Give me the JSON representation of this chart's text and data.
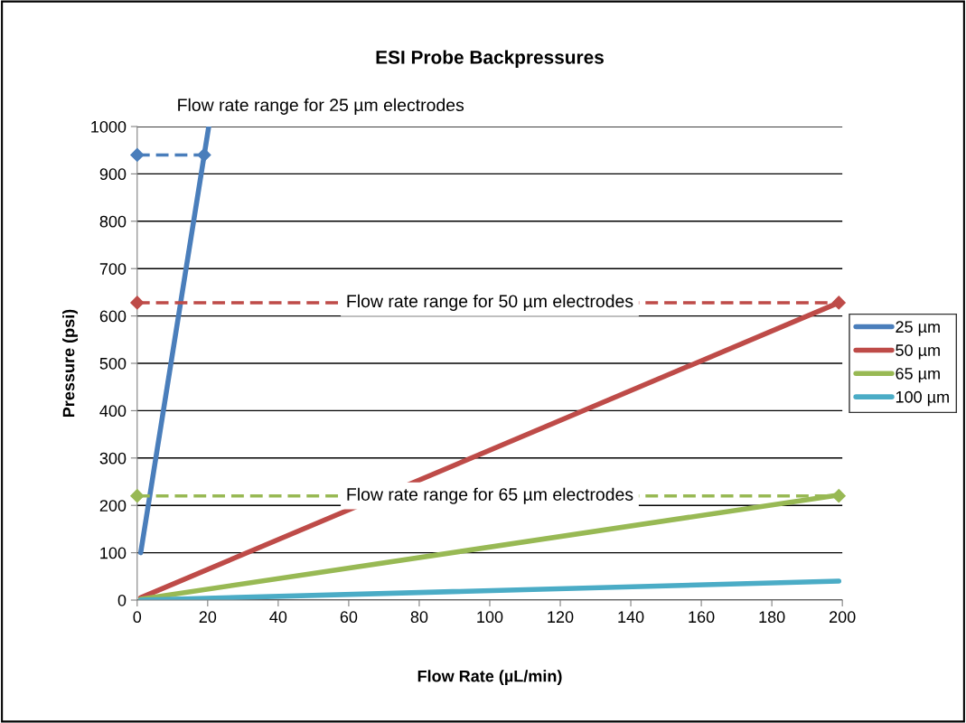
{
  "chart_data": {
    "type": "line",
    "title": "ESI Probe Backpressures",
    "xlabel": "Flow Rate (µL/min)",
    "ylabel": "Pressure (psi)",
    "xlim": [
      0,
      200
    ],
    "xticks": [
      0,
      20,
      40,
      60,
      80,
      100,
      120,
      140,
      160,
      180,
      200
    ],
    "ylim": [
      0,
      1000
    ],
    "yticks": [
      0,
      100,
      200,
      300,
      400,
      500,
      600,
      700,
      800,
      900,
      1000
    ],
    "grid": "y",
    "legend": "right",
    "line_style": "solid",
    "series": [
      {
        "name": "25 µm",
        "color": "#4a7ebb",
        "x": [
          1,
          20.3
        ],
        "values": [
          100,
          1000
        ]
      },
      {
        "name": "50 µm",
        "color": "#be4b48",
        "x": [
          1,
          199
        ],
        "values": [
          5,
          628
        ]
      },
      {
        "name": "65 µm",
        "color": "#98b954",
        "x": [
          1,
          199
        ],
        "values": [
          2,
          222
        ]
      },
      {
        "name": "100 µm",
        "color": "#4bacc6",
        "x": [
          1,
          199
        ],
        "values": [
          0,
          40
        ]
      },
      {
        "color": "#4a7ebb",
        "x": [
          0,
          19
        ],
        "values": [
          940,
          940
        ],
        "line_style": "dashed",
        "marker": "diamond"
      },
      {
        "color": "#be4b48",
        "x": [
          0,
          199
        ],
        "values": [
          628,
          628
        ],
        "line_style": "dashed",
        "marker": "diamond"
      },
      {
        "color": "#98b954",
        "x": [
          0,
          199
        ],
        "values": [
          220,
          220
        ],
        "line_style": "dashed",
        "marker": "diamond"
      }
    ],
    "annotations": [
      "Flow rate range for 25 µm electrodes",
      {
        "text": "Flow rate range for 50 µm electrodes",
        "x": 100,
        "y": 628
      },
      {
        "text": "Flow rate range for 65 µm electrodes",
        "x": 100,
        "y": 220
      }
    ]
  }
}
